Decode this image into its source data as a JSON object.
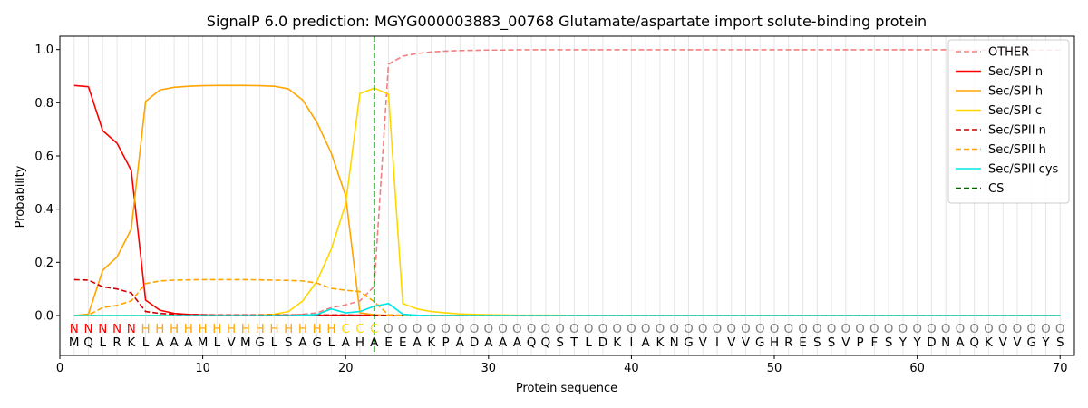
{
  "chart_data": {
    "type": "line",
    "title": "SignalP 6.0 prediction: MGYG000003883_00768 Glutamate/aspartate import solute-binding protein",
    "xlabel": "Protein sequence",
    "ylabel": "Probability",
    "xlim": [
      0,
      71
    ],
    "ylim": [
      -0.15,
      1.05
    ],
    "xticks": [
      0,
      10,
      20,
      30,
      40,
      50,
      60,
      70
    ],
    "yticks": [
      0.0,
      0.2,
      0.4,
      0.6,
      0.8,
      1.0
    ],
    "xtick_labels": [
      "0",
      "10",
      "20",
      "30",
      "40",
      "50",
      "60",
      "70"
    ],
    "ytick_labels": [
      "0.0",
      "0.2",
      "0.4",
      "0.6",
      "0.8",
      "1.0"
    ],
    "legend_position": "upper-right",
    "sequence": "MQLRKLAAAMLVMGLSAGLAHAEEAKPADAAAQQSTLDKIAKNGVIVVGHRESSVPFSYYDNAQKVVGYS",
    "region_labels": "NNNNNHHHHHHHHHHHHHHCCCOOOOOOOOOOOOOOOOOOOOOOOOOOOOOOOOOOOOOOOOOOOOOOOO",
    "region_colors": {
      "N": "#ff0000",
      "H": "#ffa500",
      "C": "#ffd700",
      "O": "#808080"
    },
    "cleavage_site": 22,
    "series": [
      {
        "name": "OTHER",
        "color": "#f08080",
        "dash": true,
        "values": [
          0.0,
          0.0,
          0.0,
          0.0,
          0.0,
          0.0,
          0.0,
          0.0,
          0.0,
          0.0,
          0.0,
          0.0,
          0.0,
          0.0,
          0.0,
          0.0,
          0.005,
          0.01,
          0.03,
          0.04,
          0.055,
          0.11,
          0.945,
          0.975,
          0.985,
          0.991,
          0.994,
          0.996,
          0.997,
          0.998,
          0.998,
          0.999,
          0.999,
          0.999,
          0.999,
          0.999,
          0.999,
          0.999,
          0.999,
          0.999,
          0.999,
          0.999,
          0.999,
          0.999,
          0.999,
          0.999,
          0.999,
          0.999,
          0.999,
          0.999,
          0.999,
          0.999,
          0.999,
          0.999,
          0.999,
          0.999,
          0.999,
          0.999,
          0.999,
          0.999,
          0.999,
          0.999,
          0.998,
          0.998,
          0.998,
          0.998,
          0.998,
          0.998,
          0.998,
          0.998
        ]
      },
      {
        "name": "Sec/SPI n",
        "color": "#ff0000",
        "dash": false,
        "values": [
          0.865,
          0.86,
          0.695,
          0.648,
          0.545,
          0.058,
          0.02,
          0.008,
          0.004,
          0.002,
          0.001,
          0.001,
          0.001,
          0.001,
          0.001,
          0.001,
          0.001,
          0.001,
          0.001,
          0.001,
          0.001,
          0.001,
          0.0,
          0.0,
          0.0,
          0.0,
          0.0,
          0.0,
          0.0,
          0.0,
          0.0,
          0.0,
          0.0,
          0.0,
          0.0,
          0.0,
          0.0,
          0.0,
          0.0,
          0.0,
          0.0,
          0.0,
          0.0,
          0.0,
          0.0,
          0.0,
          0.0,
          0.0,
          0.0,
          0.0,
          0.0,
          0.0,
          0.0,
          0.0,
          0.0,
          0.0,
          0.0,
          0.0,
          0.0,
          0.0,
          0.0,
          0.0,
          0.0,
          0.0,
          0.0,
          0.0,
          0.0,
          0.0,
          0.0,
          0.0
        ]
      },
      {
        "name": "Sec/SPI h",
        "color": "#ffa500",
        "dash": false,
        "values": [
          0.0,
          0.005,
          0.17,
          0.22,
          0.325,
          0.805,
          0.848,
          0.858,
          0.862,
          0.864,
          0.865,
          0.865,
          0.865,
          0.864,
          0.862,
          0.852,
          0.81,
          0.725,
          0.61,
          0.45,
          0.01,
          0.003,
          0.001,
          0.0,
          0.0,
          0.0,
          0.0,
          0.0,
          0.0,
          0.0,
          0.0,
          0.0,
          0.0,
          0.0,
          0.0,
          0.0,
          0.0,
          0.0,
          0.0,
          0.0,
          0.0,
          0.0,
          0.0,
          0.0,
          0.0,
          0.0,
          0.0,
          0.0,
          0.0,
          0.0,
          0.0,
          0.0,
          0.0,
          0.0,
          0.0,
          0.0,
          0.0,
          0.0,
          0.0,
          0.0,
          0.0,
          0.0,
          0.0,
          0.0,
          0.0,
          0.0,
          0.0,
          0.0,
          0.0,
          0.0
        ]
      },
      {
        "name": "Sec/SPI c",
        "color": "#ffd700",
        "dash": false,
        "values": [
          0.0,
          0.0,
          0.0,
          0.0,
          0.0,
          0.0,
          0.0,
          0.0,
          0.0,
          0.0,
          0.0,
          0.0,
          0.0,
          0.002,
          0.005,
          0.015,
          0.055,
          0.13,
          0.25,
          0.42,
          0.835,
          0.855,
          0.832,
          0.045,
          0.025,
          0.015,
          0.01,
          0.006,
          0.004,
          0.003,
          0.002,
          0.001,
          0.001,
          0.001,
          0.001,
          0.0,
          0.0,
          0.0,
          0.0,
          0.0,
          0.0,
          0.0,
          0.0,
          0.0,
          0.0,
          0.0,
          0.0,
          0.0,
          0.0,
          0.0,
          0.0,
          0.0,
          0.0,
          0.0,
          0.0,
          0.0,
          0.0,
          0.0,
          0.0,
          0.0,
          0.0,
          0.0,
          0.0,
          0.0,
          0.0,
          0.0,
          0.0,
          0.0,
          0.0,
          0.0
        ]
      },
      {
        "name": "Sec/SPII n",
        "color": "#cc0000",
        "dash": true,
        "values": [
          0.135,
          0.133,
          0.108,
          0.1,
          0.085,
          0.015,
          0.008,
          0.005,
          0.004,
          0.003,
          0.002,
          0.002,
          0.002,
          0.002,
          0.002,
          0.002,
          0.002,
          0.002,
          0.002,
          0.002,
          0.001,
          0.001,
          0.0,
          0.0,
          0.0,
          0.0,
          0.0,
          0.0,
          0.0,
          0.0,
          0.0,
          0.0,
          0.0,
          0.0,
          0.0,
          0.0,
          0.0,
          0.0,
          0.0,
          0.0,
          0.0,
          0.0,
          0.0,
          0.0,
          0.0,
          0.0,
          0.0,
          0.0,
          0.0,
          0.0,
          0.0,
          0.0,
          0.0,
          0.0,
          0.0,
          0.0,
          0.0,
          0.0,
          0.0,
          0.0,
          0.0,
          0.0,
          0.0,
          0.0,
          0.0,
          0.0,
          0.0,
          0.0,
          0.0,
          0.0
        ]
      },
      {
        "name": "Sec/SPII h",
        "color": "#ffa500",
        "dash": true,
        "values": [
          0.0,
          0.002,
          0.03,
          0.038,
          0.055,
          0.12,
          0.13,
          0.133,
          0.134,
          0.135,
          0.135,
          0.135,
          0.135,
          0.134,
          0.133,
          0.132,
          0.13,
          0.122,
          0.102,
          0.095,
          0.09,
          0.052,
          0.003,
          0.001,
          0.0,
          0.0,
          0.0,
          0.0,
          0.0,
          0.0,
          0.0,
          0.0,
          0.0,
          0.0,
          0.0,
          0.0,
          0.0,
          0.0,
          0.0,
          0.0,
          0.0,
          0.0,
          0.0,
          0.0,
          0.0,
          0.0,
          0.0,
          0.0,
          0.0,
          0.0,
          0.0,
          0.0,
          0.0,
          0.0,
          0.0,
          0.0,
          0.0,
          0.0,
          0.0,
          0.0,
          0.0,
          0.0,
          0.0,
          0.0,
          0.0,
          0.0,
          0.0,
          0.0,
          0.0,
          0.0
        ]
      },
      {
        "name": "Sec/SPII cys",
        "color": "#00e5e5",
        "dash": false,
        "values": [
          0.0,
          0.0,
          0.0,
          0.0,
          0.0,
          0.0,
          0.0,
          0.0,
          0.0,
          0.0,
          0.0,
          0.0,
          0.0,
          0.0,
          0.0,
          0.0,
          0.001,
          0.004,
          0.025,
          0.01,
          0.015,
          0.035,
          0.045,
          0.005,
          0.001,
          0.0,
          0.0,
          0.0,
          0.0,
          0.0,
          0.0,
          0.0,
          0.0,
          0.0,
          0.0,
          0.0,
          0.0,
          0.0,
          0.0,
          0.0,
          0.0,
          0.0,
          0.0,
          0.0,
          0.0,
          0.0,
          0.0,
          0.0,
          0.0,
          0.0,
          0.0,
          0.0,
          0.0,
          0.0,
          0.0,
          0.0,
          0.0,
          0.0,
          0.0,
          0.0,
          0.0,
          0.0,
          0.0,
          0.0,
          0.0,
          0.0,
          0.0,
          0.0,
          0.0,
          0.0
        ]
      }
    ],
    "legend": [
      {
        "label": "OTHER",
        "color": "#f08080",
        "dash": true
      },
      {
        "label": "Sec/SPI n",
        "color": "#ff0000",
        "dash": false
      },
      {
        "label": "Sec/SPI h",
        "color": "#ffa500",
        "dash": false
      },
      {
        "label": "Sec/SPI c",
        "color": "#ffd700",
        "dash": false
      },
      {
        "label": "Sec/SPII n",
        "color": "#cc0000",
        "dash": true
      },
      {
        "label": "Sec/SPII h",
        "color": "#ffa500",
        "dash": true
      },
      {
        "label": "Sec/SPII cys",
        "color": "#00e5e5",
        "dash": false
      },
      {
        "label": "CS",
        "color": "#006400",
        "dash": true
      }
    ]
  }
}
